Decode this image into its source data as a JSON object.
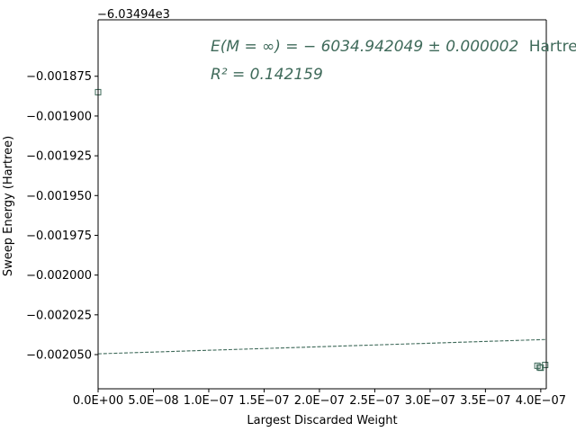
{
  "chart_data": {
    "type": "scatter",
    "xlabel": "Largest Discarded Weight",
    "ylabel": "Sweep Energy (Hartree)",
    "y_offset_label": "−6.03494e3",
    "xlim": [
      0,
      4.05e-07
    ],
    "ylim": [
      -0.0020715,
      -0.0018395
    ],
    "x_ticks": [
      0,
      5e-08,
      1e-07,
      1.5e-07,
      2e-07,
      2.5e-07,
      3e-07,
      3.5e-07,
      4e-07
    ],
    "x_tick_labels": [
      "0.0E+00",
      "5.0E−08",
      "1.0E−07",
      "1.5E−07",
      "2.0E−07",
      "2.5E−07",
      "3.0E−07",
      "3.5E−07",
      "4.0E−07"
    ],
    "y_ticks": [
      -0.001875,
      -0.0019,
      -0.001925,
      -0.00195,
      -0.001975,
      -0.002,
      -0.002025,
      -0.00205
    ],
    "y_tick_labels": [
      "−0.001875",
      "−0.001900",
      "−0.001925",
      "−0.001950",
      "−0.001975",
      "−0.002000",
      "−0.002025",
      "−0.002050"
    ],
    "points": [
      {
        "x": 0,
        "y": -0.001885
      },
      {
        "x": 3.97e-07,
        "y": -0.002057
      },
      {
        "x": 3.99e-07,
        "y": -0.002058
      },
      {
        "x": 4e-07,
        "y": -0.0020583
      },
      {
        "x": 4.04e-07,
        "y": -0.0020565
      }
    ],
    "fit_line": {
      "x": [
        0,
        4.05e-07
      ],
      "y": [
        -0.0020495,
        -0.0020405
      ]
    },
    "annotations": {
      "line1_math": "E(M = ∞) = − 6034.942049 ± 0.000002",
      "line1_unit": "Hartree",
      "line2_math": "R² = 0.142159"
    },
    "colors": {
      "marker": "#3f6a5a",
      "fit_line": "#3f6a5a",
      "annotation": "#3f6a5a",
      "axes": "#000000"
    },
    "grid": false
  }
}
